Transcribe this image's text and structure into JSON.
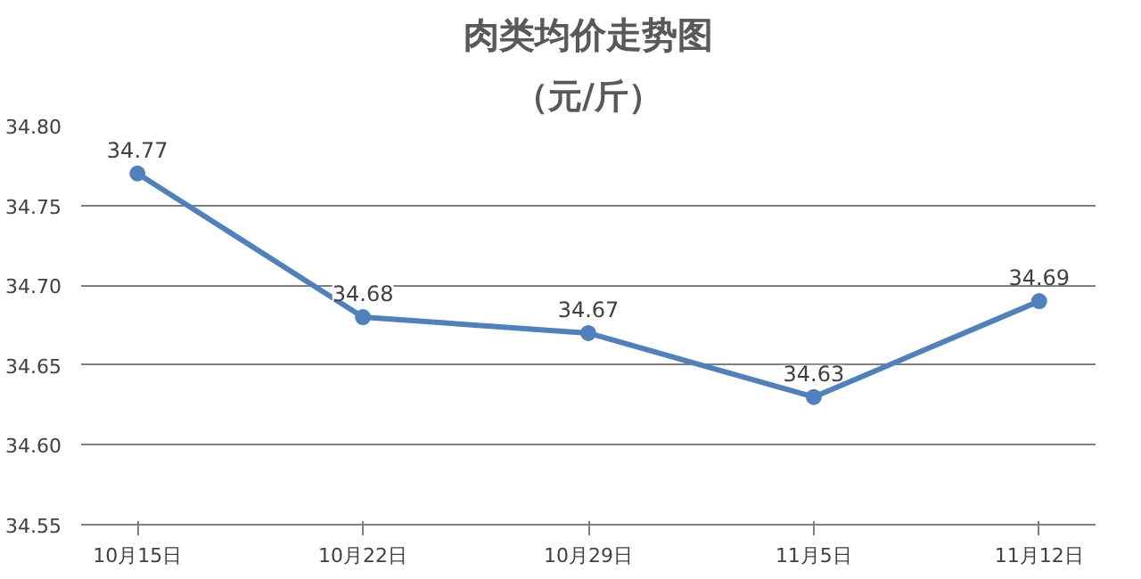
{
  "chart_data": {
    "type": "line",
    "title": "肉类均价走势图",
    "subtitle": "（元/斤）",
    "categories": [
      "10月15日",
      "10月22日",
      "10月29日",
      "11月5日",
      "11月12日"
    ],
    "series": [
      {
        "color": "#4f81bd",
        "values": [
          34.77,
          34.68,
          34.67,
          34.63,
          34.69
        ]
      }
    ],
    "ylim": [
      34.55,
      34.8
    ],
    "yticks": [
      34.55,
      {
        "value": 34.6,
        "label": "34.60"
      },
      34.65,
      {
        "value": 34.7,
        "label": "34.70"
      },
      34.75,
      {
        "value": 34.8,
        "label": "34.80"
      }
    ],
    "grid": "y",
    "marker": "circle",
    "line_style": "solid",
    "data_labels": true
  }
}
